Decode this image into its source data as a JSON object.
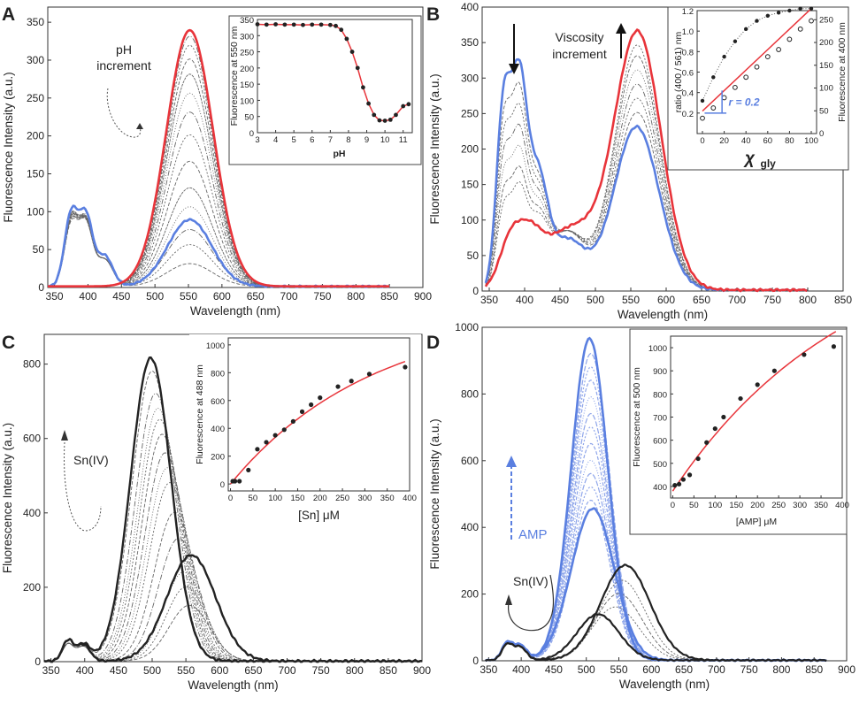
{
  "figure": {
    "panels": [
      {
        "id": "A",
        "label": "A",
        "xlabel": "Wavelength (nm)",
        "ylabel": "Fluorescence Intensity (a.u.)",
        "annotations": [
          "pH",
          "increment"
        ],
        "inset": {
          "xlabel": "pH",
          "ylabel": "Fluorescence at 550 nm"
        }
      },
      {
        "id": "B",
        "label": "B",
        "xlabel": "Wavelength (nm)",
        "ylabel": "Fluorescence Intensity (a.u.)",
        "annotations": [
          "Viscosity",
          "increment"
        ],
        "inset": {
          "xlabel": "χ",
          "xsub": "gly",
          "ylabel": "ratio (400 / 561) nm",
          "y2label": "Fluorescence at 400 nm",
          "r_label": "r = 0.2"
        }
      },
      {
        "id": "C",
        "label": "C",
        "xlabel": "Wavelength (nm)",
        "ylabel": "Fluorescence Intensity (a.u.)",
        "annotations": [
          "Sn(IV)"
        ],
        "inset": {
          "xlabel": "[Sn] μM",
          "ylabel": "Fluorescence at 488 nm"
        }
      },
      {
        "id": "D",
        "label": "D",
        "xlabel": "Wavelength (nm)",
        "ylabel": "Fluorescence Intensity (a.u.)",
        "annotations": [
          "AMP",
          "Sn(IV)"
        ],
        "inset": {
          "xlabel": "[AMP] μM",
          "ylabel": "Fluorescence at 500 nm"
        }
      }
    ]
  },
  "colors": {
    "red": "#e8343a",
    "blue": "#5a7fe0",
    "gray": "#666666",
    "dark": "#222222"
  },
  "chart_data": [
    {
      "type": "line",
      "panel": "A",
      "xlim": [
        340,
        900
      ],
      "ylim": [
        0,
        370
      ],
      "xticks": [
        350,
        400,
        450,
        500,
        550,
        600,
        650,
        700,
        750,
        800,
        850,
        900
      ],
      "yticks": [
        0,
        50,
        100,
        150,
        200,
        250,
        300,
        350
      ],
      "series": [
        {
          "role": "red",
          "peaks": [
            [
              552,
              338,
              35
            ]
          ],
          "x_range": [
            340,
            850
          ]
        },
        {
          "role": "blue",
          "peaks": [
            [
              375,
              95,
              10
            ],
            [
              397,
              90,
              10
            ],
            [
              425,
              40,
              12
            ],
            [
              552,
              88,
              33
            ]
          ],
          "x_range": [
            340,
            850
          ]
        },
        {
          "role": "gray",
          "peak_heights": [
            30,
            55,
            75,
            105,
            130,
            165,
            200,
            230,
            255,
            280,
            300,
            318,
            330
          ]
        }
      ],
      "inset": {
        "type": "scatter",
        "xlim": [
          3,
          11.5
        ],
        "ylim": [
          0,
          350
        ],
        "xticks": [
          3,
          4,
          5,
          6,
          7,
          8,
          9,
          10,
          11
        ],
        "yticks": [
          0,
          50,
          100,
          150,
          200,
          250,
          300,
          350
        ],
        "points": [
          [
            3.0,
            335
          ],
          [
            3.5,
            334
          ],
          [
            4.0,
            335
          ],
          [
            4.5,
            334
          ],
          [
            5.0,
            334
          ],
          [
            5.5,
            333
          ],
          [
            6.0,
            334
          ],
          [
            6.5,
            334
          ],
          [
            7.0,
            333
          ],
          [
            7.3,
            330
          ],
          [
            7.6,
            318
          ],
          [
            7.9,
            290
          ],
          [
            8.2,
            250
          ],
          [
            8.5,
            200
          ],
          [
            8.8,
            140
          ],
          [
            9.1,
            90
          ],
          [
            9.4,
            55
          ],
          [
            9.7,
            38
          ],
          [
            10.0,
            37
          ],
          [
            10.3,
            40
          ],
          [
            10.6,
            55
          ],
          [
            11.0,
            82
          ],
          [
            11.3,
            88
          ]
        ]
      }
    },
    {
      "type": "line",
      "panel": "B",
      "xlim": [
        340,
        850
      ],
      "ylim": [
        0,
        400
      ],
      "xticks": [
        350,
        400,
        450,
        500,
        550,
        600,
        650,
        700,
        750,
        800,
        850
      ],
      "yticks": [
        0,
        50,
        100,
        150,
        200,
        250,
        300,
        350,
        400
      ],
      "series": [
        {
          "role": "red",
          "peaks": [
            [
              378,
              55,
              15
            ],
            [
              405,
              60,
              18
            ],
            [
              465,
              85,
              40
            ],
            [
              560,
              360,
              33
            ]
          ],
          "x_range": [
            345,
            800
          ]
        },
        {
          "role": "blue",
          "peaks": [
            [
              370,
              250,
              10
            ],
            [
              392,
              275,
              11
            ],
            [
              418,
              150,
              14
            ],
            [
              460,
              70,
              25
            ],
            [
              558,
              230,
              32
            ]
          ],
          "x_range": [
            345,
            800
          ]
        },
        {
          "role": "gray",
          "peak_heights": [
            250,
            270,
            290,
            310,
            330,
            345
          ]
        }
      ],
      "inset": {
        "type": "scatter",
        "xlim": [
          0,
          100
        ],
        "ylim": [
          0,
          1.2
        ],
        "xticks": [
          0,
          20,
          40,
          60,
          80,
          100
        ],
        "yticks": [
          0.2,
          0.4,
          0.6,
          0.8,
          1.0,
          1.2
        ],
        "y2ticks": [
          0,
          50,
          100,
          150,
          200,
          250
        ],
        "filled": [
          [
            0,
            0.32
          ],
          [
            10,
            0.55
          ],
          [
            20,
            0.75
          ],
          [
            30,
            0.9
          ],
          [
            40,
            1.02
          ],
          [
            50,
            1.1
          ],
          [
            60,
            1.15
          ],
          [
            70,
            1.18
          ],
          [
            80,
            1.2
          ],
          [
            90,
            1.22
          ],
          [
            100,
            1.22
          ]
        ],
        "open": [
          [
            0,
            0.15
          ],
          [
            10,
            0.25
          ],
          [
            20,
            0.35
          ],
          [
            30,
            0.45
          ],
          [
            40,
            0.55
          ],
          [
            50,
            0.65
          ],
          [
            60,
            0.75
          ],
          [
            70,
            0.82
          ],
          [
            80,
            0.92
          ],
          [
            90,
            1.02
          ],
          [
            100,
            1.1
          ]
        ]
      }
    },
    {
      "type": "line",
      "panel": "C",
      "xlim": [
        340,
        900
      ],
      "ylim": [
        0,
        880
      ],
      "xticks": [
        350,
        400,
        450,
        500,
        550,
        600,
        650,
        700,
        750,
        800,
        850,
        900
      ],
      "yticks": [
        0,
        200,
        400,
        600,
        800
      ],
      "series": [
        {
          "role": "dark",
          "peaks": [
            [
              375,
              55,
              8
            ],
            [
              398,
              45,
              10
            ],
            [
              498,
              815,
              30
            ]
          ],
          "x_range": [
            340,
            900
          ]
        },
        {
          "role": "dark",
          "peaks": [
            [
              375,
              55,
              8
            ],
            [
              398,
              45,
              10
            ],
            [
              558,
              285,
              36
            ]
          ],
          "x_range": [
            340,
            900
          ]
        },
        {
          "role": "gray",
          "peak_heights": [
            150,
            200,
            240,
            330,
            400,
            480,
            520,
            560,
            610,
            650,
            680,
            720,
            780
          ]
        }
      ],
      "inset": {
        "type": "scatter",
        "xlim": [
          -5,
          400
        ],
        "ylim": [
          -50,
          1050
        ],
        "xticks": [
          0,
          50,
          100,
          150,
          200,
          250,
          300,
          350,
          400
        ],
        "yticks": [
          0,
          200,
          400,
          600,
          800,
          1000
        ],
        "points": [
          [
            5,
            20
          ],
          [
            10,
            20
          ],
          [
            20,
            20
          ],
          [
            40,
            100
          ],
          [
            60,
            250
          ],
          [
            80,
            300
          ],
          [
            100,
            350
          ],
          [
            120,
            390
          ],
          [
            140,
            450
          ],
          [
            160,
            520
          ],
          [
            180,
            570
          ],
          [
            200,
            620
          ],
          [
            240,
            700
          ],
          [
            270,
            740
          ],
          [
            310,
            790
          ],
          [
            390,
            840
          ]
        ]
      }
    },
    {
      "type": "line",
      "panel": "D",
      "xlim": [
        340,
        900
      ],
      "ylim": [
        0,
        1000
      ],
      "xticks": [
        350,
        400,
        450,
        500,
        550,
        600,
        650,
        700,
        750,
        800,
        850,
        900
      ],
      "yticks": [
        0,
        200,
        400,
        600,
        800,
        1000
      ],
      "series": [
        {
          "role": "blue",
          "peaks": [
            [
              378,
              50,
              8
            ],
            [
              398,
              45,
              10
            ],
            [
              505,
              965,
              28
            ]
          ],
          "x_range": [
            345,
            870
          ]
        },
        {
          "role": "blue",
          "peaks": [
            [
              378,
              50,
              8
            ],
            [
              398,
              45,
              10
            ],
            [
              510,
              455,
              33
            ]
          ],
          "x_range": [
            345,
            870
          ]
        },
        {
          "role": "dark",
          "peaks": [
            [
              378,
              45,
              8
            ],
            [
              398,
              40,
              10
            ],
            [
              560,
              285,
              38
            ]
          ],
          "x_range": [
            345,
            870
          ]
        },
        {
          "role": "dark",
          "peaks": [
            [
              378,
              45,
              8
            ],
            [
              398,
              40,
              10
            ],
            [
              518,
              138,
              32
            ]
          ],
          "x_range": [
            345,
            870
          ]
        },
        {
          "role": "lightblue",
          "peak_heights": [
            480,
            520,
            560,
            600,
            650,
            700,
            740,
            790,
            840,
            880,
            920
          ]
        }
      ],
      "inset": {
        "type": "scatter",
        "xlim": [
          -5,
          400
        ],
        "ylim": [
          350,
          1050
        ],
        "xticks": [
          0,
          50,
          100,
          150,
          200,
          250,
          300,
          350,
          400
        ],
        "yticks": [
          400,
          500,
          600,
          700,
          800,
          900,
          1000
        ],
        "points": [
          [
            5,
            405
          ],
          [
            15,
            410
          ],
          [
            25,
            430
          ],
          [
            40,
            450
          ],
          [
            60,
            520
          ],
          [
            80,
            590
          ],
          [
            100,
            650
          ],
          [
            120,
            700
          ],
          [
            160,
            780
          ],
          [
            200,
            840
          ],
          [
            240,
            900
          ],
          [
            310,
            970
          ],
          [
            380,
            1005
          ]
        ]
      }
    }
  ]
}
